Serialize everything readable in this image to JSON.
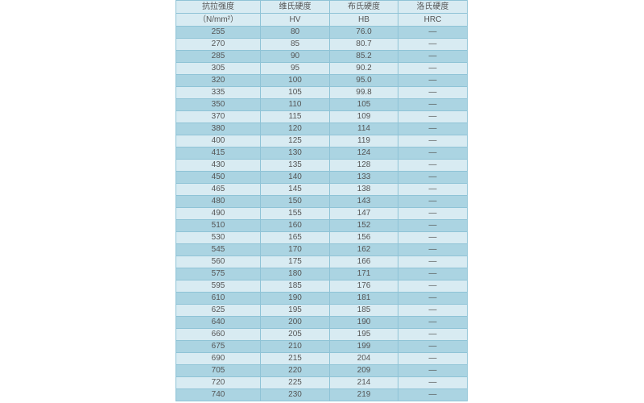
{
  "header": [
    {
      "line1": "抗拉强度",
      "line2": "（N/mm²）"
    },
    {
      "line1": "维氏硬度",
      "line2": "HV"
    },
    {
      "line1": "布氏硬度",
      "line2": "HB"
    },
    {
      "line1": "洛氏硬度",
      "line2": "HRC"
    }
  ],
  "rows": [
    [
      "255",
      "80",
      "76.0",
      "—"
    ],
    [
      "270",
      "85",
      "80.7",
      "—"
    ],
    [
      "285",
      "90",
      "85.2",
      "—"
    ],
    [
      "305",
      "95",
      "90.2",
      "—"
    ],
    [
      "320",
      "100",
      "95.0",
      "—"
    ],
    [
      "335",
      "105",
      "99.8",
      "—"
    ],
    [
      "350",
      "110",
      "105",
      "—"
    ],
    [
      "370",
      "115",
      "109",
      "—"
    ],
    [
      "380",
      "120",
      "114",
      "—"
    ],
    [
      "400",
      "125",
      "119",
      "—"
    ],
    [
      "415",
      "130",
      "124",
      "—"
    ],
    [
      "430",
      "135",
      "128",
      "—"
    ],
    [
      "450",
      "140",
      "133",
      "—"
    ],
    [
      "465",
      "145",
      "138",
      "—"
    ],
    [
      "480",
      "150",
      "143",
      "—"
    ],
    [
      "490",
      "155",
      "147",
      "—"
    ],
    [
      "510",
      "160",
      "152",
      "—"
    ],
    [
      "530",
      "165",
      "156",
      "—"
    ],
    [
      "545",
      "170",
      "162",
      "—"
    ],
    [
      "560",
      "175",
      "166",
      "—"
    ],
    [
      "575",
      "180",
      "171",
      "—"
    ],
    [
      "595",
      "185",
      "176",
      "—"
    ],
    [
      "610",
      "190",
      "181",
      "—"
    ],
    [
      "625",
      "195",
      "185",
      "—"
    ],
    [
      "640",
      "200",
      "190",
      "—"
    ],
    [
      "660",
      "205",
      "195",
      "—"
    ],
    [
      "675",
      "210",
      "199",
      "—"
    ],
    [
      "690",
      "215",
      "204",
      "—"
    ],
    [
      "705",
      "220",
      "209",
      "—"
    ],
    [
      "720",
      "225",
      "214",
      "—"
    ],
    [
      "740",
      "230",
      "219",
      "—"
    ]
  ]
}
